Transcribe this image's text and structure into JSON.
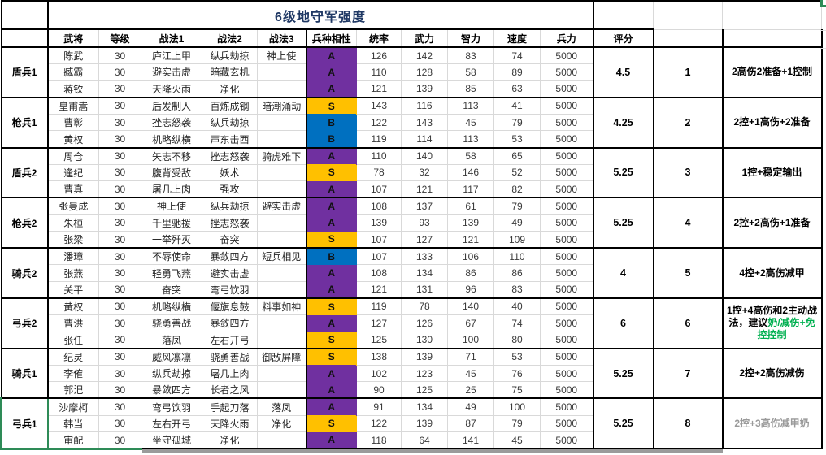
{
  "title": "6级地守军强度",
  "columns": [
    "武将",
    "等级",
    "战法1",
    "战法2",
    "战法3",
    "兵种相性",
    "统率",
    "武力",
    "智力",
    "速度",
    "兵力"
  ],
  "score_header": "评分",
  "level_value": "30",
  "troops_value": "5000",
  "affinity_colors": {
    "S": "#FFC000",
    "A": "#7030A0",
    "B": "#0070C0"
  },
  "text_colors": {
    "title": "#1F3864",
    "green": "#00B050",
    "gray": "#9a9a9a",
    "black": "#000000"
  },
  "groups": [
    {
      "name": "盾兵1",
      "score": "4.5",
      "rank": "1",
      "selected": false,
      "comment": [
        {
          "text": "2高伤2准备+1控制",
          "color": "black"
        }
      ],
      "rows": [
        {
          "name": "陈武",
          "level": "30",
          "t1": "庐江上甲",
          "t2": "纵兵劫掠",
          "t3": "神上使",
          "aff": "A",
          "stats": [
            "126",
            "142",
            "83",
            "74",
            "5000"
          ]
        },
        {
          "name": "臧霸",
          "level": "30",
          "t1": "避实击虚",
          "t2": "暗藏玄机",
          "t3": "",
          "aff": "A",
          "stats": [
            "110",
            "128",
            "58",
            "89",
            "5000"
          ]
        },
        {
          "name": "蒋钦",
          "level": "30",
          "t1": "天降火雨",
          "t2": "净化",
          "t3": "",
          "aff": "A",
          "stats": [
            "121",
            "139",
            "85",
            "63",
            "5000"
          ]
        }
      ]
    },
    {
      "name": "枪兵1",
      "score": "4.25",
      "rank": "2",
      "selected": false,
      "comment": [
        {
          "text": "2控+1高伤+2准备",
          "color": "black"
        }
      ],
      "rows": [
        {
          "name": "皇甫嵩",
          "level": "30",
          "t1": "后发制人",
          "t2": "百炼成钢",
          "t3": "暗潮涌动",
          "aff": "S",
          "stats": [
            "143",
            "116",
            "113",
            "41",
            "5000"
          ]
        },
        {
          "name": "曹彰",
          "level": "30",
          "t1": "挫志怒袭",
          "t2": "纵兵劫掠",
          "t3": "",
          "aff": "B",
          "stats": [
            "122",
            "143",
            "45",
            "79",
            "5000"
          ]
        },
        {
          "name": "黄权",
          "level": "30",
          "t1": "机略纵横",
          "t2": "声东击西",
          "t3": "",
          "aff": "B",
          "stats": [
            "119",
            "114",
            "113",
            "53",
            "5000"
          ]
        }
      ]
    },
    {
      "name": "盾兵2",
      "score": "5.25",
      "rank": "3",
      "selected": false,
      "comment": [
        {
          "text": "1控+稳定输出",
          "color": "black"
        }
      ],
      "rows": [
        {
          "name": "周仓",
          "level": "30",
          "t1": "矢志不移",
          "t2": "挫志怒袭",
          "t3": "骑虎难下",
          "aff": "A",
          "stats": [
            "110",
            "140",
            "58",
            "65",
            "5000"
          ]
        },
        {
          "name": "逢纪",
          "level": "30",
          "t1": "腹背受敌",
          "t2": "妖术",
          "t3": "",
          "aff": "S",
          "stats": [
            "78",
            "32",
            "146",
            "52",
            "5000"
          ]
        },
        {
          "name": "曹真",
          "level": "30",
          "t1": "屠几上肉",
          "t2": "强攻",
          "t3": "",
          "aff": "A",
          "stats": [
            "107",
            "121",
            "117",
            "82",
            "5000"
          ]
        }
      ]
    },
    {
      "name": "枪兵2",
      "score": "5.25",
      "rank": "4",
      "selected": false,
      "comment": [
        {
          "text": "2控+2高伤+1准备",
          "color": "black"
        }
      ],
      "rows": [
        {
          "name": "张曼成",
          "level": "30",
          "t1": "神上使",
          "t2": "纵兵劫掠",
          "t3": "避实击虚",
          "aff": "A",
          "stats": [
            "108",
            "137",
            "61",
            "79",
            "5000"
          ]
        },
        {
          "name": "朱桓",
          "level": "30",
          "t1": "千里驰援",
          "t2": "挫志怒袭",
          "t3": "",
          "aff": "A",
          "stats": [
            "139",
            "93",
            "139",
            "49",
            "5000"
          ]
        },
        {
          "name": "张梁",
          "level": "30",
          "t1": "一举歼灭",
          "t2": "奋突",
          "t3": "",
          "aff": "S",
          "stats": [
            "107",
            "127",
            "121",
            "109",
            "5000"
          ]
        }
      ]
    },
    {
      "name": "骑兵2",
      "score": "4",
      "rank": "5",
      "selected": false,
      "comment": [
        {
          "text": "4控+2高伤减甲",
          "color": "black"
        }
      ],
      "rows": [
        {
          "name": "潘璋",
          "level": "30",
          "t1": "不辱使命",
          "t2": "暴敛四方",
          "t3": "短兵相见",
          "aff": "B",
          "stats": [
            "107",
            "133",
            "106",
            "110",
            "5000"
          ]
        },
        {
          "name": "张燕",
          "level": "30",
          "t1": "轻勇飞燕",
          "t2": "避实击虚",
          "t3": "",
          "aff": "A",
          "stats": [
            "108",
            "134",
            "86",
            "86",
            "5000"
          ]
        },
        {
          "name": "关平",
          "level": "30",
          "t1": "奋突",
          "t2": "弯弓饮羽",
          "t3": "",
          "aff": "A",
          "stats": [
            "121",
            "131",
            "96",
            "83",
            "5000"
          ]
        }
      ]
    },
    {
      "name": "弓兵2",
      "score": "6",
      "rank": "6",
      "selected": false,
      "comment": [
        {
          "text": "1控+4高伤和2主动战法，建议",
          "color": "black"
        },
        {
          "text": "奶/减伤+免控控制",
          "color": "green"
        }
      ],
      "rows": [
        {
          "name": "黄权",
          "level": "30",
          "t1": "机略纵横",
          "t2": "偃旗息鼓",
          "t3": "料事如神",
          "aff": "S",
          "stats": [
            "119",
            "78",
            "140",
            "40",
            "5000"
          ]
        },
        {
          "name": "曹洪",
          "level": "30",
          "t1": "骁勇善战",
          "t2": "暴敛四方",
          "t3": "",
          "aff": "A",
          "stats": [
            "127",
            "126",
            "67",
            "74",
            "5000"
          ]
        },
        {
          "name": "张任",
          "level": "30",
          "t1": "落凤",
          "t2": "左右开弓",
          "t3": "",
          "aff": "S",
          "stats": [
            "125",
            "130",
            "100",
            "80",
            "5000"
          ]
        }
      ]
    },
    {
      "name": "骑兵1",
      "score": "5.25",
      "rank": "7",
      "selected": false,
      "comment": [
        {
          "text": "2控+2高伤减伤",
          "color": "black"
        }
      ],
      "rows": [
        {
          "name": "纪灵",
          "level": "30",
          "t1": "威风凛凛",
          "t2": "骁勇善战",
          "t3": "御敌屏障",
          "aff": "S",
          "stats": [
            "138",
            "139",
            "71",
            "53",
            "5000"
          ]
        },
        {
          "name": "李傕",
          "level": "30",
          "t1": "纵兵劫掠",
          "t2": "屠几上肉",
          "t3": "",
          "aff": "A",
          "stats": [
            "102",
            "123",
            "45",
            "76",
            "5000"
          ]
        },
        {
          "name": "郭汜",
          "level": "30",
          "t1": "暴敛四方",
          "t2": "长者之风",
          "t3": "",
          "aff": "A",
          "stats": [
            "90",
            "125",
            "25",
            "75",
            "5000"
          ]
        }
      ]
    },
    {
      "name": "弓兵1",
      "score": "5.25",
      "rank": "8",
      "selected": true,
      "comment": [
        {
          "text": "2控+3高伤减甲奶",
          "color": "gray"
        }
      ],
      "rows": [
        {
          "name": "沙摩柯",
          "level": "30",
          "t1": "弯弓饮羽",
          "t2": "手起刀落",
          "t3": "落凤",
          "aff": "A",
          "stats": [
            "91",
            "134",
            "49",
            "100",
            "5000"
          ]
        },
        {
          "name": "韩当",
          "level": "30",
          "t1": "左右开弓",
          "t2": "天降火雨",
          "t3": "净化",
          "aff": "S",
          "stats": [
            "122",
            "139",
            "87",
            "79",
            "5000"
          ]
        },
        {
          "name": "审配",
          "level": "30",
          "t1": "坐守孤城",
          "t2": "净化",
          "t3": "",
          "aff": "A",
          "stats": [
            "118",
            "64",
            "141",
            "45",
            "5000"
          ]
        }
      ]
    }
  ]
}
